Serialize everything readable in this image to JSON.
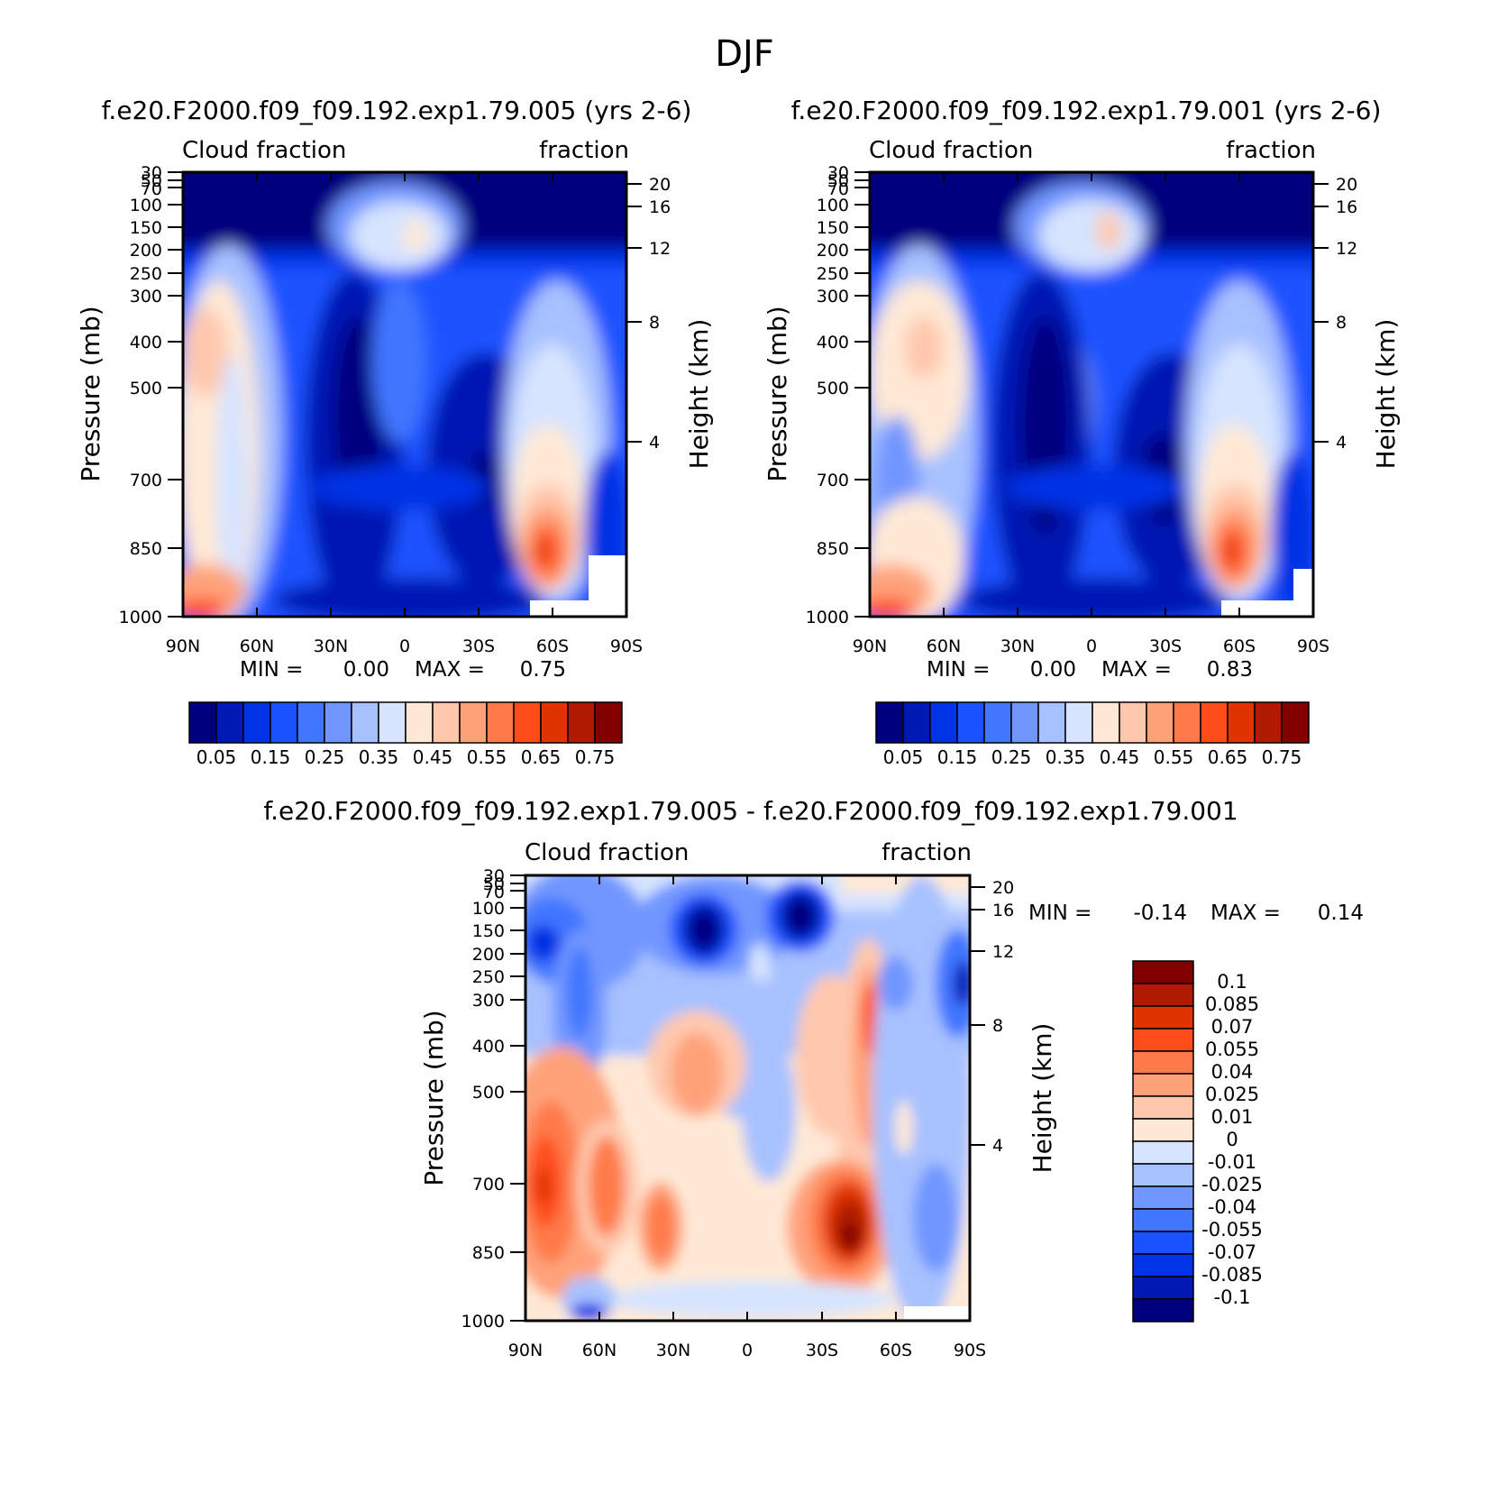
{
  "title": "DJF",
  "chart_data": [
    {
      "id": "case1",
      "type": "heatmap",
      "title": "f.e20.F2000.f09_f09.192.exp1.79.005 (yrs 2-6)",
      "left_label": "Cloud fraction",
      "right_label": "fraction",
      "ylabel": "Pressure (mb)",
      "y2label": "Height (km)",
      "xticks": [
        "90N",
        "60N",
        "30N",
        "0",
        "30S",
        "60S",
        "90S"
      ],
      "yticks": [
        "30",
        "50",
        "70",
        "100",
        "150",
        "200",
        "250",
        "300",
        "400",
        "500",
        "700",
        "850",
        "1000"
      ],
      "y2ticks": [
        "20",
        "16",
        "12",
        "8",
        "4"
      ],
      "min_label": "MIN =",
      "min_value": "0.00",
      "max_label": "MAX =",
      "max_value": "0.75",
      "levels": [
        "0.05",
        "0.15",
        "0.25",
        "0.35",
        "0.45",
        "0.55",
        "0.65",
        "0.75"
      ]
    },
    {
      "id": "case2",
      "type": "heatmap",
      "title": "f.e20.F2000.f09_f09.192.exp1.79.001 (yrs 2-6)",
      "left_label": "Cloud fraction",
      "right_label": "fraction",
      "ylabel": "Pressure (mb)",
      "y2label": "Height (km)",
      "xticks": [
        "90N",
        "60N",
        "30N",
        "0",
        "30S",
        "60S",
        "90S"
      ],
      "yticks": [
        "30",
        "50",
        "70",
        "100",
        "150",
        "200",
        "250",
        "300",
        "400",
        "500",
        "700",
        "850",
        "1000"
      ],
      "y2ticks": [
        "20",
        "16",
        "12",
        "8",
        "4"
      ],
      "min_label": "MIN =",
      "min_value": "0.00",
      "max_label": "MAX =",
      "max_value": "0.83",
      "levels": [
        "0.05",
        "0.15",
        "0.25",
        "0.35",
        "0.45",
        "0.55",
        "0.65",
        "0.75"
      ]
    },
    {
      "id": "diff",
      "type": "heatmap",
      "title": "f.e20.F2000.f09_f09.192.exp1.79.005 - f.e20.F2000.f09_f09.192.exp1.79.001",
      "left_label": "Cloud fraction",
      "right_label": "fraction",
      "ylabel": "Pressure (mb)",
      "y2label": "Height (km)",
      "xticks": [
        "90N",
        "60N",
        "30N",
        "0",
        "30S",
        "60S",
        "90S"
      ],
      "yticks": [
        "30",
        "50",
        "70",
        "100",
        "150",
        "200",
        "250",
        "300",
        "400",
        "500",
        "700",
        "850",
        "1000"
      ],
      "y2ticks": [
        "20",
        "16",
        "12",
        "8",
        "4"
      ],
      "min_label": "MIN =",
      "min_value": "-0.14",
      "max_label": "MAX =",
      "max_value": "0.14",
      "levels": [
        "0.1",
        "0.085",
        "0.07",
        "0.055",
        "0.04",
        "0.025",
        "0.01",
        "0",
        "-0.01",
        "-0.025",
        "-0.04",
        "-0.055",
        "-0.07",
        "-0.085",
        "-0.1"
      ]
    }
  ],
  "colors": {
    "seq_palette": [
      "#00007f",
      "#0019b2",
      "#0033e5",
      "#1a52ff",
      "#4176ff",
      "#7196ff",
      "#a7c1ff",
      "#d6e4ff",
      "#ffe9d6",
      "#ffc8ad",
      "#ffa27a",
      "#ff7a4a",
      "#ff4d1a",
      "#e03400",
      "#b01a00",
      "#800000"
    ],
    "diff_palette_top_down": [
      "#800000",
      "#b01a00",
      "#e03400",
      "#ff4d1a",
      "#ff7a4a",
      "#ffa27a",
      "#ffc8ad",
      "#ffe9d6",
      "#d6e4ff",
      "#a7c1ff",
      "#7196ff",
      "#4176ff",
      "#1a52ff",
      "#0033e5",
      "#0019b2",
      "#00007f"
    ]
  }
}
